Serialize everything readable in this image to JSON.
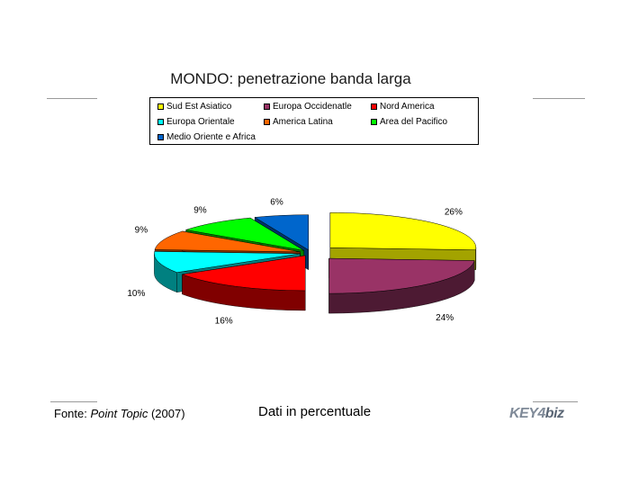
{
  "chart_data": {
    "type": "pie",
    "title": "MONDO: penetrazione banda larga",
    "subtitle": "Dati in percentuale",
    "legend_position": "top",
    "series": [
      {
        "name": "Sud Est Asiatico",
        "label": "26%",
        "value": 26,
        "color": "#ffff00",
        "side": "#a3a300"
      },
      {
        "name": "Europa Occidenatle",
        "label": "24%",
        "value": 24,
        "color": "#993366",
        "side": "#4d1a33"
      },
      {
        "name": "Nord America",
        "label": "16%",
        "value": 16,
        "color": "#ff0000",
        "side": "#800000"
      },
      {
        "name": "Europa Orientale",
        "label": "10%",
        "value": 10,
        "color": "#00ffff",
        "side": "#008080"
      },
      {
        "name": "America Latina",
        "label": "9%",
        "value": 9,
        "color": "#ff6600",
        "side": "#803300"
      },
      {
        "name": "Area del Pacifico",
        "label": "9%",
        "value": 9,
        "color": "#00ff00",
        "side": "#008000"
      },
      {
        "name": "Medio Oriente e Africa",
        "label": "6%",
        "value": 6,
        "color": "#0066cc",
        "side": "#003366"
      }
    ]
  },
  "footer": {
    "source_prefix": "Fonte:",
    "source_name": "Point Topic",
    "source_year": "(2007)"
  },
  "logo": {
    "text_a": "KEY4",
    "text_b": "biz"
  }
}
